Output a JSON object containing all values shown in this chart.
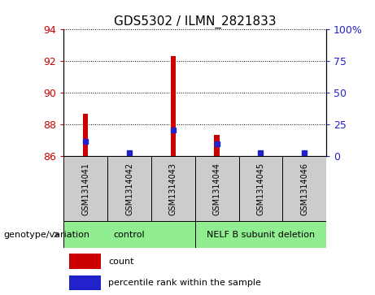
{
  "title": "GDS5302 / ILMN_2821833",
  "samples": [
    "GSM1314041",
    "GSM1314042",
    "GSM1314043",
    "GSM1314044",
    "GSM1314045",
    "GSM1314046"
  ],
  "count_values": [
    88.7,
    86.15,
    92.3,
    87.35,
    86.1,
    86.15
  ],
  "percentile_right": [
    12,
    3,
    21,
    10,
    3,
    3
  ],
  "ylim_left": [
    86,
    94
  ],
  "ylim_right": [
    0,
    100
  ],
  "yticks_left": [
    86,
    88,
    90,
    92,
    94
  ],
  "yticks_right": [
    0,
    25,
    50,
    75,
    100
  ],
  "ytick_labels_right": [
    "0",
    "25",
    "50",
    "75",
    "100%"
  ],
  "group_spans": [
    [
      0,
      2,
      "control"
    ],
    [
      3,
      5,
      "NELF B subunit deletion"
    ]
  ],
  "group_label": "genotype/variation",
  "bar_width": 0.12,
  "count_color": "#CC0000",
  "percentile_color": "#2222CC",
  "plot_bg": "#FFFFFF",
  "sample_box_bg": "#CCCCCC",
  "group_bg": "#90EE90",
  "legend_count": "count",
  "legend_pct": "percentile rank within the sample"
}
